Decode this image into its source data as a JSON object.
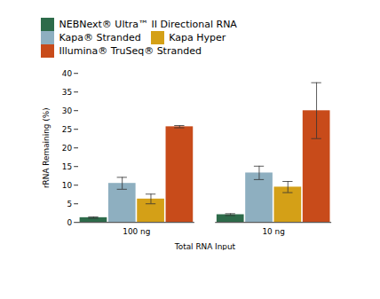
{
  "chart_data": {
    "type": "bar",
    "categories": [
      "100 ng",
      "10 ng"
    ],
    "series": [
      {
        "name": "NEBNext® Ultra™ II Directional RNA",
        "color": "#2d6b4a",
        "values": [
          1.3,
          2.1
        ],
        "errors": [
          0.2,
          0.25
        ]
      },
      {
        "name": "Kapa® Stranded",
        "color": "#8eafc0",
        "values": [
          10.5,
          13.3
        ],
        "errors": [
          1.6,
          1.8
        ]
      },
      {
        "name": "Kapa Hyper",
        "color": "#d4a017",
        "values": [
          6.3,
          9.5
        ],
        "errors": [
          1.3,
          1.5
        ]
      },
      {
        "name": "Illumina® TruSeq® Stranded",
        "color": "#c84b1a",
        "values": [
          25.7,
          30.0
        ],
        "errors": [
          0.3,
          7.5
        ]
      }
    ],
    "xlabel": "Total RNA Input",
    "ylabel": "rRNA Remaining (%)",
    "ylim": [
      0,
      40
    ],
    "yticks": [
      0,
      5,
      10,
      15,
      20,
      25,
      30,
      35,
      40
    ],
    "grid": false,
    "legend": "upper left"
  }
}
